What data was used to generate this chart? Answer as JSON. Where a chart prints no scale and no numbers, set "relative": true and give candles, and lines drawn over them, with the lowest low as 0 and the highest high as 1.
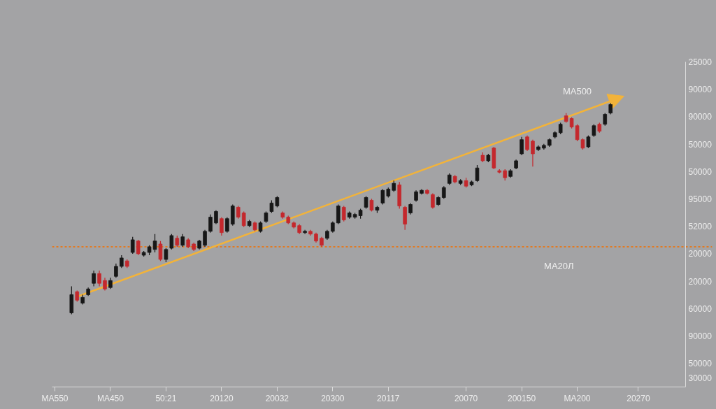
{
  "chart_data": {
    "type": "candlestick",
    "relative": true,
    "categories": [
      "MA550",
      null,
      null,
      null,
      null,
      null,
      null,
      null,
      null,
      null,
      "MA450",
      null,
      null,
      null,
      null,
      null,
      null,
      null,
      null,
      null,
      "50:21",
      null,
      null,
      null,
      null,
      null,
      null,
      null,
      null,
      null,
      "20120",
      null,
      null,
      null,
      null,
      null,
      null,
      null,
      null,
      null,
      "20032",
      null,
      null,
      null,
      null,
      null,
      null,
      null,
      null,
      null,
      "20300",
      null,
      null,
      null,
      null,
      null,
      null,
      null,
      null,
      null,
      "20117",
      null,
      null,
      null,
      null,
      null,
      null,
      null,
      null,
      null,
      null,
      null,
      null,
      null,
      "20070",
      null,
      null,
      null,
      null,
      null,
      null,
      null,
      null,
      null,
      "200150",
      null,
      null,
      null,
      null,
      null,
      null,
      null,
      null,
      null,
      "MA200",
      null,
      null,
      null,
      null,
      null,
      null,
      null,
      null,
      null,
      null,
      "20270",
      null,
      null,
      null,
      null,
      null,
      null,
      null,
      null
    ],
    "ohlc": [
      null,
      null,
      null,
      [
        0.007,
        0.133,
        0,
        0.093
      ],
      [
        0.107,
        0.113,
        0.06,
        0.067
      ],
      [
        0.053,
        0.093,
        0.047,
        0.08
      ],
      [
        0.093,
        0.127,
        0.087,
        0.12
      ],
      [
        0.147,
        0.207,
        0.133,
        0.193
      ],
      [
        0.193,
        0.207,
        0.133,
        0.147
      ],
      [
        0.16,
        0.173,
        0.113,
        0.12
      ],
      [
        0.127,
        0.173,
        0.12,
        0.16
      ],
      [
        0.18,
        0.24,
        0.173,
        0.227
      ],
      [
        0.227,
        0.28,
        0.22,
        0.267
      ],
      [
        0.253,
        0.26,
        0.22,
        0.227
      ],
      [
        0.293,
        0.367,
        0.287,
        0.353
      ],
      [
        0.347,
        0.353,
        0.28,
        0.287
      ],
      [
        0.28,
        0.3,
        0.273,
        0.293
      ],
      [
        0.293,
        0.327,
        0.28,
        0.32
      ],
      [
        0.307,
        0.38,
        0.293,
        0.347
      ],
      [
        0.333,
        0.347,
        0.253,
        0.26
      ],
      [
        0.26,
        0.313,
        0.247,
        0.307
      ],
      [
        0.313,
        0.38,
        0.307,
        0.373
      ],
      [
        0.36,
        0.373,
        0.32,
        0.327
      ],
      [
        0.327,
        0.38,
        0.32,
        0.367
      ],
      [
        0.353,
        0.36,
        0.313,
        0.32
      ],
      [
        0.333,
        0.34,
        0.3,
        0.307
      ],
      [
        0.313,
        0.353,
        0.307,
        0.347
      ],
      [
        0.327,
        0.4,
        0.32,
        0.393
      ],
      [
        0.393,
        0.473,
        0.387,
        0.46
      ],
      [
        0.433,
        0.493,
        0.427,
        0.487
      ],
      [
        0.453,
        0.46,
        0.373,
        0.387
      ],
      [
        0.393,
        0.46,
        0.387,
        0.453
      ],
      [
        0.427,
        0.52,
        0.42,
        0.513
      ],
      [
        0.507,
        0.513,
        0.453,
        0.46
      ],
      [
        0.48,
        0.487,
        0.413,
        0.42
      ],
      [
        0.42,
        0.447,
        0.413,
        0.44
      ],
      [
        0.433,
        0.44,
        0.393,
        0.4
      ],
      [
        0.393,
        0.44,
        0.387,
        0.433
      ],
      [
        0.44,
        0.487,
        0.433,
        0.48
      ],
      [
        0.487,
        0.54,
        0.48,
        0.527
      ],
      [
        0.513,
        0.56,
        0.507,
        0.553
      ],
      [
        0.48,
        0.487,
        0.453,
        0.46
      ],
      [
        0.46,
        0.467,
        0.427,
        0.433
      ],
      [
        0.433,
        0.44,
        0.407,
        0.413
      ],
      [
        0.42,
        0.427,
        0.38,
        0.387
      ],
      [
        0.387,
        0.4,
        0.38,
        0.393
      ],
      [
        0.393,
        0.4,
        0.373,
        0.38
      ],
      [
        0.38,
        0.387,
        0.34,
        0.347
      ],
      [
        0.36,
        0.367,
        0.32,
        0.327
      ],
      [
        0.36,
        0.4,
        0.353,
        0.393
      ],
      [
        0.393,
        0.44,
        0.387,
        0.433
      ],
      [
        0.433,
        0.52,
        0.427,
        0.513
      ],
      [
        0.507,
        0.513,
        0.44,
        0.447
      ],
      [
        0.46,
        0.487,
        0.453,
        0.48
      ],
      [
        0.46,
        0.48,
        0.453,
        0.473
      ],
      [
        0.467,
        0.5,
        0.453,
        0.493
      ],
      [
        0.507,
        0.56,
        0.5,
        0.553
      ],
      [
        0.54,
        0.547,
        0.487,
        0.493
      ],
      [
        0.493,
        0.513,
        0.48,
        0.507
      ],
      [
        0.527,
        0.593,
        0.52,
        0.587
      ],
      [
        0.56,
        0.6,
        0.553,
        0.593
      ],
      [
        0.587,
        0.633,
        0.58,
        0.62
      ],
      [
        0.613,
        0.627,
        0.5,
        0.513
      ],
      [
        0.507,
        0.513,
        0.4,
        0.427
      ],
      [
        0.48,
        0.527,
        0.473,
        0.52
      ],
      [
        0.54,
        0.587,
        0.533,
        0.58
      ],
      [
        0.573,
        0.593,
        0.567,
        0.587
      ],
      [
        0.587,
        0.593,
        0.567,
        0.573
      ],
      [
        0.567,
        0.573,
        0.5,
        0.507
      ],
      [
        0.52,
        0.56,
        0.513,
        0.553
      ],
      [
        0.553,
        0.607,
        0.547,
        0.6
      ],
      [
        0.62,
        0.667,
        0.613,
        0.66
      ],
      [
        0.653,
        0.66,
        0.62,
        0.627
      ],
      [
        0.62,
        0.64,
        0.613,
        0.633
      ],
      [
        0.633,
        0.647,
        0.6,
        0.607
      ],
      [
        0.613,
        0.633,
        0.607,
        0.627
      ],
      [
        0.633,
        0.707,
        0.627,
        0.693
      ],
      [
        0.753,
        0.767,
        0.72,
        0.727
      ],
      [
        0.727,
        0.76,
        0.72,
        0.753
      ],
      [
        0.787,
        0.793,
        0.687,
        0.693
      ],
      [
        0.68,
        0.687,
        0.667,
        0.673
      ],
      [
        0.68,
        0.687,
        0.633,
        0.647
      ],
      [
        0.653,
        0.687,
        0.647,
        0.68
      ],
      [
        0.693,
        0.733,
        0.687,
        0.727
      ],
      [
        0.76,
        0.84,
        0.753,
        0.827
      ],
      [
        0.84,
        0.847,
        0.773,
        0.78
      ],
      [
        0.82,
        0.827,
        0.7,
        0.76
      ],
      [
        0.78,
        0.8,
        0.773,
        0.793
      ],
      [
        0.787,
        0.807,
        0.78,
        0.8
      ],
      [
        0.8,
        0.833,
        0.793,
        0.827
      ],
      [
        0.84,
        0.867,
        0.833,
        0.86
      ],
      [
        0.86,
        0.907,
        0.853,
        0.9
      ],
      [
        0.94,
        0.953,
        0.907,
        0.913
      ],
      [
        0.927,
        0.933,
        0.88,
        0.887
      ],
      [
        0.893,
        0.9,
        0.82,
        0.827
      ],
      [
        0.827,
        0.833,
        0.78,
        0.787
      ],
      [
        0.793,
        0.847,
        0.787,
        0.84
      ],
      [
        0.847,
        0.9,
        0.84,
        0.893
      ],
      [
        0.9,
        0.907,
        0.86,
        0.867
      ],
      [
        0.9,
        0.953,
        0.893,
        0.947
      ],
      [
        0.953,
        1,
        0.947,
        0.993
      ],
      null,
      null,
      null,
      null,
      null,
      null,
      null,
      null,
      null,
      null,
      null,
      null,
      null
    ],
    "colors": [
      null,
      null,
      null,
      "#171717",
      "#c4282d",
      "#171717",
      "#171717",
      "#171717",
      "#c4282d",
      "#c4282d",
      "#171717",
      "#171717",
      "#171717",
      "#c4282d",
      "#171717",
      "#c4282d",
      "#171717",
      "#171717",
      "#171717",
      "#c4282d",
      "#171717",
      "#171717",
      "#c4282d",
      "#171717",
      "#c4282d",
      "#c4282d",
      "#171717",
      "#171717",
      "#171717",
      "#171717",
      "#c4282d",
      "#171717",
      "#171717",
      "#c4282d",
      "#c4282d",
      "#171717",
      "#c4282d",
      "#171717",
      "#171717",
      "#171717",
      "#171717",
      "#c4282d",
      "#c4282d",
      "#c4282d",
      "#c4282d",
      "#171717",
      "#c4282d",
      "#c4282d",
      "#c4282d",
      "#171717",
      "#171717",
      "#171717",
      "#c4282d",
      "#171717",
      "#171717",
      "#171717",
      "#171717",
      "#c4282d",
      "#171717",
      "#171717",
      "#171717",
      "#171717",
      "#c4282d",
      "#c4282d",
      "#171717",
      "#171717",
      "#171717",
      "#c4282d",
      "#c4282d",
      "#171717",
      "#171717",
      "#171717",
      "#c4282d",
      "#171717",
      "#c4282d",
      "#171717",
      "#171717",
      "#c4282d",
      "#171717",
      "#c4282d",
      "#c4282d",
      "#c4282d",
      "#171717",
      "#171717",
      "#171717",
      "#c4282d",
      "#c4282d",
      "#171717",
      "#171717",
      "#171717",
      "#171717",
      "#171717",
      "#c4282d",
      "#c4282d",
      "#c4282d",
      "#c4282d",
      "#171717",
      "#171717",
      "#c4282d",
      "#171717",
      "#171717",
      null,
      null,
      null,
      null,
      null,
      null,
      null,
      null,
      null,
      null,
      null,
      null,
      null
    ],
    "ref_lines": [
      {
        "axis": "y",
        "value": 0.32,
        "label": "MA20Л",
        "color": "#e27a22",
        "line_style": "dotted"
      }
    ],
    "annotations": [
      "MA500",
      "25000",
      "90000",
      "90000",
      "50000",
      "50000",
      "95000",
      "52000",
      "20000",
      "20000",
      "60000",
      "90000",
      "50000",
      "30000"
    ]
  }
}
